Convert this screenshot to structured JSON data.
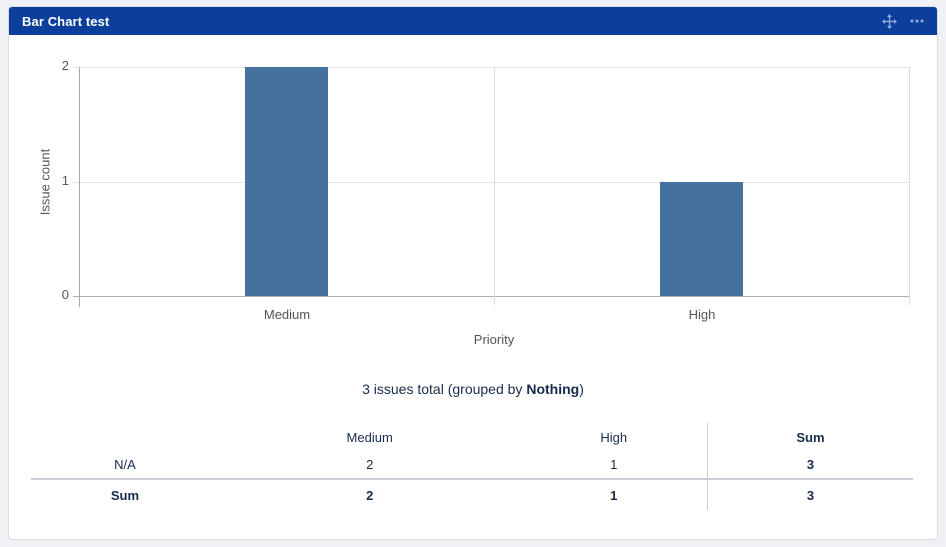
{
  "header": {
    "title": "Bar Chart test",
    "bg_color": "#0c3f9c",
    "icon_color": "#96a9de"
  },
  "chart_data": {
    "type": "bar",
    "title": "Bar Chart test",
    "categories": [
      "Medium",
      "High"
    ],
    "values": [
      2,
      1
    ],
    "xlabel": "Priority",
    "ylabel": "Issue count",
    "ylim": [
      0,
      2
    ],
    "yticks": [
      0,
      1,
      2
    ],
    "bar_color": "#45719e",
    "grid": true,
    "legend": false
  },
  "summary": {
    "text_before": "3 issues total (grouped by ",
    "group": "Nothing",
    "text_after": ")"
  },
  "table": {
    "columns": [
      "",
      "Medium",
      "High",
      "Sum"
    ],
    "sum_col_index": 3,
    "rows": [
      {
        "label": "N/A",
        "values": [
          "2",
          "1",
          "3"
        ],
        "bold": false
      },
      {
        "label": "Sum",
        "values": [
          "2",
          "1",
          "3"
        ],
        "bold": true
      }
    ]
  }
}
